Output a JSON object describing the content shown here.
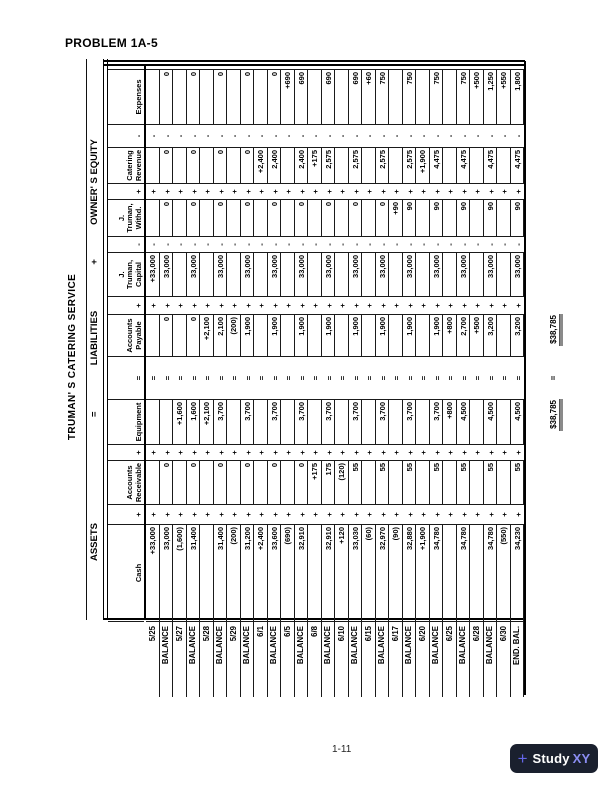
{
  "heading": "PROBLEM 1A-5",
  "worksheet": {
    "title": "TRUMAN' S CATERING SERVICE",
    "sections": {
      "assets": "ASSETS",
      "liab_eq_sign": "=",
      "liabilities": "LIABILITIES",
      "liab_plus_sign": "+",
      "owners_equity": "OWNER' S EQUITY"
    },
    "column_labels": [
      "Cash",
      "Accounts\nReceivable",
      "Equipment",
      "Accounts\nPayable",
      "J.\nTruman,\nCapital",
      "J.\nTruman,\nWithd.",
      "Catering\nRevenue",
      "Expenses"
    ],
    "operators": [
      "+",
      "+",
      "=",
      "+",
      "-",
      "+",
      "-"
    ],
    "rows": [
      {
        "date": "5/25",
        "values": [
          "+33,000",
          "",
          "",
          "",
          "+33,000",
          "",
          "",
          ""
        ]
      },
      {
        "date": "BALANCE",
        "values": [
          "33,000",
          "0",
          "",
          "0",
          "33,000",
          "0",
          "0",
          "0"
        ]
      },
      {
        "date": "5/27",
        "values": [
          "(1,600)",
          "",
          "+1,600",
          "",
          "",
          "",
          "",
          ""
        ]
      },
      {
        "date": "BALANCE",
        "values": [
          "31,400",
          "0",
          "1,600",
          "0",
          "33,000",
          "0",
          "0",
          "0"
        ]
      },
      {
        "date": "5/28",
        "values": [
          "",
          "",
          "+2,100",
          "+2,100",
          "",
          "",
          "",
          ""
        ]
      },
      {
        "date": "BALANCE",
        "values": [
          "31,400",
          "0",
          "3,700",
          "2,100",
          "33,000",
          "0",
          "0",
          "0"
        ]
      },
      {
        "date": "5/29",
        "values": [
          "(200)",
          "",
          "",
          "(200)",
          "",
          "",
          "",
          ""
        ]
      },
      {
        "date": "BALANCE",
        "values": [
          "31,200",
          "0",
          "3,700",
          "1,900",
          "33,000",
          "0",
          "0",
          "0"
        ]
      },
      {
        "date": "6/1",
        "values": [
          "+2,400",
          "",
          "",
          "",
          "",
          "",
          "+2,400",
          ""
        ]
      },
      {
        "date": "BALANCE",
        "values": [
          "33,600",
          "0",
          "3,700",
          "1,900",
          "33,000",
          "0",
          "2,400",
          "0"
        ]
      },
      {
        "date": "6/5",
        "values": [
          "(690)",
          "",
          "",
          "",
          "",
          "",
          "",
          "+690"
        ]
      },
      {
        "date": "BALANCE",
        "values": [
          "32,910",
          "0",
          "3,700",
          "1,900",
          "33,000",
          "0",
          "2,400",
          "690"
        ]
      },
      {
        "date": "6/8",
        "values": [
          "",
          "+175",
          "",
          "",
          "",
          "",
          "+175",
          ""
        ]
      },
      {
        "date": "BALANCE",
        "values": [
          "32,910",
          "175",
          "3,700",
          "1,900",
          "33,000",
          "0",
          "2,575",
          "690"
        ]
      },
      {
        "date": "6/10",
        "values": [
          "+120",
          "(120)",
          "",
          "",
          "",
          "",
          "",
          ""
        ]
      },
      {
        "date": "BALANCE",
        "values": [
          "33,030",
          "55",
          "3,700",
          "1,900",
          "33,000",
          "0",
          "2,575",
          "690"
        ]
      },
      {
        "date": "6/15",
        "values": [
          "(60)",
          "",
          "",
          "",
          "",
          "",
          "",
          "+60"
        ]
      },
      {
        "date": "BALANCE",
        "values": [
          "32,970",
          "55",
          "3,700",
          "1,900",
          "33,000",
          "0",
          "2,575",
          "750"
        ]
      },
      {
        "date": "6/17",
        "values": [
          "(90)",
          "",
          "",
          "",
          "",
          "+90",
          "",
          ""
        ]
      },
      {
        "date": "BALANCE",
        "values": [
          "32,880",
          "55",
          "3,700",
          "1,900",
          "33,000",
          "90",
          "2,575",
          "750"
        ]
      },
      {
        "date": "6/20",
        "values": [
          "+1,900",
          "",
          "",
          "",
          "",
          "",
          "+1,900",
          ""
        ]
      },
      {
        "date": "BALANCE",
        "values": [
          "34,780",
          "55",
          "3,700",
          "1,900",
          "33,000",
          "90",
          "4,475",
          "750"
        ]
      },
      {
        "date": "6/25",
        "values": [
          "",
          "",
          "+800",
          "+800",
          "",
          "",
          "",
          ""
        ]
      },
      {
        "date": "BALANCE",
        "values": [
          "34,780",
          "55",
          "4,500",
          "2,700",
          "33,000",
          "90",
          "4,475",
          "750"
        ]
      },
      {
        "date": "6/28",
        "values": [
          "",
          "",
          "",
          "+500",
          "",
          "",
          "",
          "+500"
        ]
      },
      {
        "date": "BALANCE",
        "values": [
          "34,780",
          "55",
          "4,500",
          "3,200",
          "33,000",
          "90",
          "4,475",
          "1,250"
        ]
      },
      {
        "date": "6/30",
        "values": [
          "(550)",
          "",
          "",
          "",
          "",
          "",
          "",
          "+550"
        ]
      },
      {
        "date": "END. BAL.",
        "values": [
          "34,230",
          "55",
          "4,500",
          "3,200",
          "33,000",
          "90",
          "4,475",
          "1,800"
        ]
      }
    ],
    "totals": {
      "assets_total": "$38,785",
      "equals_sign": "=",
      "liab_equity_total": "$38,785"
    }
  },
  "footer": {
    "page_number": "1-11"
  },
  "logo": {
    "plus": "+",
    "study": "Study",
    "xy": "XY",
    "bg_color": "#1a202e",
    "plus_color": "#6466e9",
    "study_color": "#ffffff",
    "xy_color": "#8b8df2"
  }
}
